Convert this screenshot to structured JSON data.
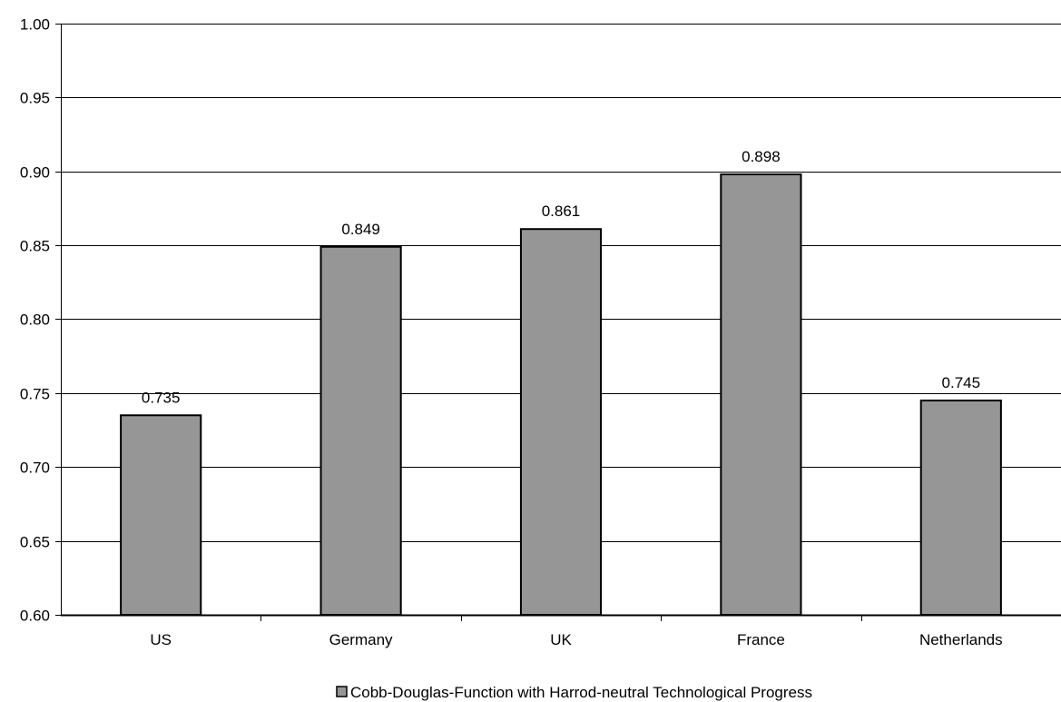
{
  "chart_data": {
    "type": "bar",
    "categories": [
      "US",
      "Germany",
      "UK",
      "France",
      "Netherlands"
    ],
    "series": [
      {
        "name": "Cobb-Douglas-Function with Harrod-neutral Technological Progress",
        "values": [
          0.735,
          0.849,
          0.861,
          0.898,
          0.745
        ],
        "value_labels": [
          "0.735",
          "0.849",
          "0.861",
          "0.898",
          "0.745"
        ]
      }
    ],
    "ylim": [
      0.6,
      1.0
    ],
    "yticks": [
      "0.60",
      "0.65",
      "0.70",
      "0.75",
      "0.80",
      "0.85",
      "0.90",
      "0.95",
      "1.00"
    ],
    "title": "",
    "xlabel": "",
    "ylabel": "",
    "grid": true,
    "legend_position": "bottom",
    "colors": {
      "bar_fill": "#969696",
      "bar_stroke": "#000000",
      "grid": "#000000",
      "axis": "#000000"
    }
  }
}
